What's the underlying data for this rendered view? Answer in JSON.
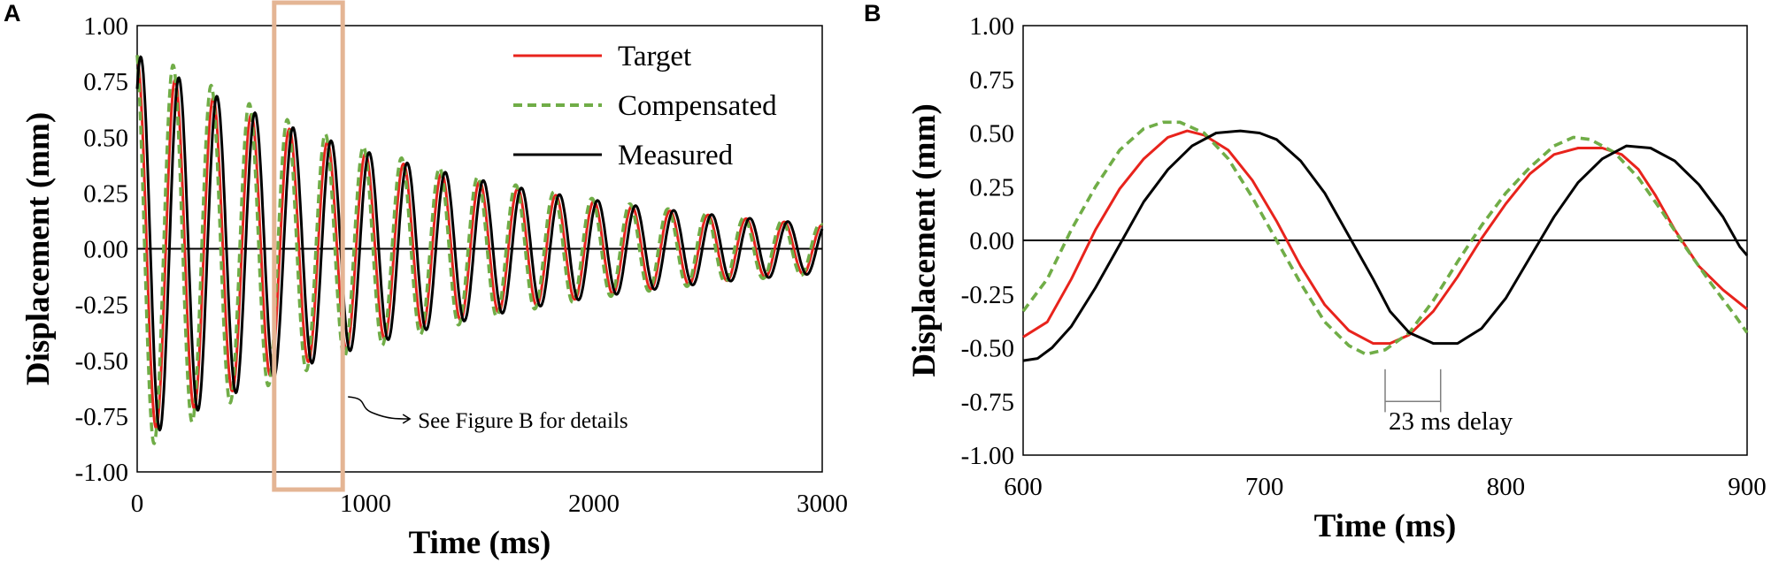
{
  "figure": {
    "domain": "Chart"
  },
  "chart_data": [
    {
      "id": "A",
      "panel_label": "A",
      "type": "line",
      "xlabel": "Time (ms)",
      "ylabel": "Displacement (mm)",
      "xlim": [
        0,
        3000
      ],
      "ylim": [
        -1.0,
        1.0
      ],
      "xticks": [
        "0",
        "1000",
        "2000",
        "3000"
      ],
      "yticks": [
        "-1.00",
        "-0.75",
        "-0.50",
        "-0.25",
        "0.00",
        "0.25",
        "0.50",
        "0.75",
        "1.00"
      ],
      "xtick_values": [
        0,
        1000,
        2000,
        3000
      ],
      "ytick_values": [
        -1.0,
        -0.75,
        -0.5,
        -0.25,
        0.0,
        0.25,
        0.5,
        0.75,
        1.0
      ],
      "legend_position": "top-right",
      "series": [
        {
          "name": "Target",
          "color": "#e8231c",
          "dash": "solid",
          "amp0": 0.85,
          "decay_ms": 1450,
          "period_ms": 166.7,
          "delay_ms": 0
        },
        {
          "name": "Compensated",
          "color": "#70ad47",
          "dash": "dashed",
          "amp0": 0.92,
          "decay_ms": 1420,
          "period_ms": 166.7,
          "delay_ms": -9
        },
        {
          "name": "Measured",
          "color": "#000000",
          "dash": "solid",
          "amp0": 0.87,
          "decay_ms": 1450,
          "period_ms": 166.7,
          "delay_ms": 16
        }
      ],
      "highlight_box": {
        "x_range": [
          600,
          900
        ],
        "color": "#e4b594"
      },
      "annotation": "See Figure B for details"
    },
    {
      "id": "B",
      "panel_label": "B",
      "type": "line",
      "xlabel": "Time (ms)",
      "ylabel": "Displacement (mm)",
      "xlim": [
        600,
        900
      ],
      "ylim": [
        -1.0,
        1.0
      ],
      "xticks": [
        "600",
        "700",
        "800",
        "900"
      ],
      "yticks": [
        "-1.00",
        "-0.75",
        "-0.50",
        "-0.25",
        "0.00",
        "0.25",
        "0.50",
        "0.75",
        "1.00"
      ],
      "xtick_values": [
        600,
        700,
        800,
        900
      ],
      "ytick_values": [
        -1.0,
        -0.75,
        -0.5,
        -0.25,
        0.0,
        0.25,
        0.5,
        0.75,
        1.0
      ],
      "series": [
        {
          "name": "Target",
          "color": "#e8231c",
          "dash": "solid",
          "points": [
            [
              600,
              -0.45
            ],
            [
              610,
              -0.38
            ],
            [
              620,
              -0.18
            ],
            [
              630,
              0.05
            ],
            [
              640,
              0.24
            ],
            [
              650,
              0.38
            ],
            [
              660,
              0.48
            ],
            [
              668,
              0.51
            ],
            [
              675,
              0.49
            ],
            [
              685,
              0.42
            ],
            [
              695,
              0.28
            ],
            [
              705,
              0.09
            ],
            [
              715,
              -0.12
            ],
            [
              725,
              -0.3
            ],
            [
              735,
              -0.42
            ],
            [
              745,
              -0.48
            ],
            [
              752,
              -0.48
            ],
            [
              760,
              -0.44
            ],
            [
              770,
              -0.33
            ],
            [
              780,
              -0.17
            ],
            [
              790,
              0.01
            ],
            [
              800,
              0.17
            ],
            [
              810,
              0.31
            ],
            [
              820,
              0.4
            ],
            [
              830,
              0.43
            ],
            [
              840,
              0.43
            ],
            [
              848,
              0.4
            ],
            [
              855,
              0.33
            ],
            [
              862,
              0.21
            ],
            [
              870,
              0.05
            ],
            [
              880,
              -0.12
            ],
            [
              890,
              -0.23
            ],
            [
              900,
              -0.32
            ]
          ]
        },
        {
          "name": "Compensated",
          "color": "#70ad47",
          "dash": "dashed",
          "points": [
            [
              600,
              -0.33
            ],
            [
              610,
              -0.18
            ],
            [
              620,
              0.05
            ],
            [
              630,
              0.25
            ],
            [
              640,
              0.42
            ],
            [
              650,
              0.52
            ],
            [
              658,
              0.55
            ],
            [
              665,
              0.55
            ],
            [
              675,
              0.5
            ],
            [
              685,
              0.38
            ],
            [
              695,
              0.2
            ],
            [
              705,
              0.0
            ],
            [
              715,
              -0.2
            ],
            [
              725,
              -0.38
            ],
            [
              735,
              -0.49
            ],
            [
              742,
              -0.53
            ],
            [
              750,
              -0.51
            ],
            [
              760,
              -0.43
            ],
            [
              770,
              -0.28
            ],
            [
              780,
              -0.1
            ],
            [
              790,
              0.07
            ],
            [
              800,
              0.22
            ],
            [
              810,
              0.34
            ],
            [
              820,
              0.44
            ],
            [
              828,
              0.48
            ],
            [
              835,
              0.47
            ],
            [
              845,
              0.41
            ],
            [
              855,
              0.29
            ],
            [
              865,
              0.13
            ],
            [
              875,
              -0.04
            ],
            [
              885,
              -0.2
            ],
            [
              895,
              -0.35
            ],
            [
              900,
              -0.43
            ]
          ]
        },
        {
          "name": "Measured",
          "color": "#000000",
          "dash": "solid",
          "points": [
            [
              600,
              -0.56
            ],
            [
              606,
              -0.55
            ],
            [
              612,
              -0.5
            ],
            [
              620,
              -0.4
            ],
            [
              630,
              -0.22
            ],
            [
              640,
              -0.02
            ],
            [
              650,
              0.18
            ],
            [
              660,
              0.33
            ],
            [
              670,
              0.44
            ],
            [
              680,
              0.5
            ],
            [
              690,
              0.51
            ],
            [
              698,
              0.5
            ],
            [
              705,
              0.47
            ],
            [
              715,
              0.37
            ],
            [
              725,
              0.22
            ],
            [
              735,
              0.02
            ],
            [
              745,
              -0.18
            ],
            [
              752,
              -0.33
            ],
            [
              760,
              -0.43
            ],
            [
              770,
              -0.48
            ],
            [
              780,
              -0.48
            ],
            [
              790,
              -0.41
            ],
            [
              800,
              -0.27
            ],
            [
              810,
              -0.08
            ],
            [
              820,
              0.11
            ],
            [
              830,
              0.27
            ],
            [
              840,
              0.38
            ],
            [
              850,
              0.44
            ],
            [
              860,
              0.43
            ],
            [
              870,
              0.37
            ],
            [
              880,
              0.26
            ],
            [
              890,
              0.11
            ],
            [
              897,
              -0.03
            ],
            [
              900,
              -0.07
            ]
          ]
        }
      ],
      "annotation": "23 ms delay",
      "delay_bracket_ms": [
        750,
        773
      ]
    }
  ]
}
